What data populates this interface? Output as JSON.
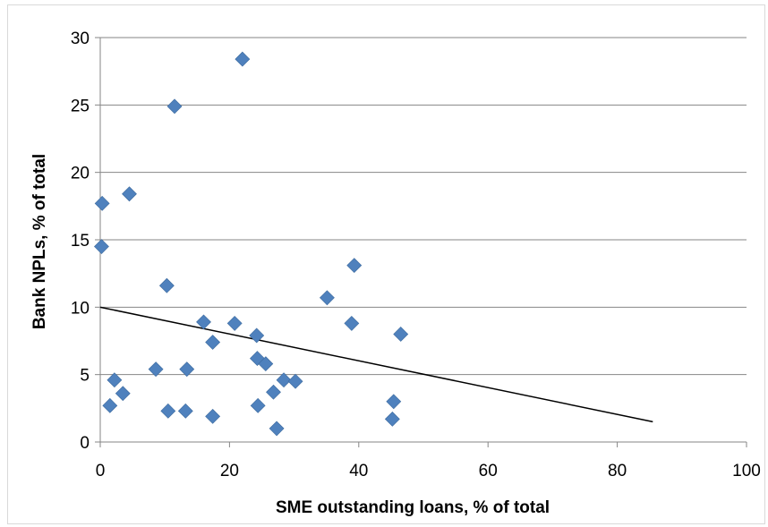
{
  "chart_data": {
    "type": "scatter",
    "title": "",
    "xlabel": "SME outstanding loans, % of total",
    "ylabel": "Bank NPLs, % of total",
    "xlim": [
      0,
      100
    ],
    "ylim": [
      0,
      30
    ],
    "x_ticks": [
      "0",
      "20",
      "40",
      "60",
      "80",
      "100"
    ],
    "y_ticks": [
      "0",
      "5",
      "10",
      "15",
      "20",
      "25",
      "30"
    ],
    "grid": "horizontal",
    "legend": "none",
    "marker_color": "#4f81bd",
    "points": [
      {
        "x": 0.3,
        "y": 17.7
      },
      {
        "x": 0.2,
        "y": 14.5
      },
      {
        "x": 1.5,
        "y": 2.7
      },
      {
        "x": 2.2,
        "y": 4.6
      },
      {
        "x": 3.5,
        "y": 3.6
      },
      {
        "x": 4.5,
        "y": 18.4
      },
      {
        "x": 8.6,
        "y": 5.4
      },
      {
        "x": 10.3,
        "y": 11.6
      },
      {
        "x": 10.5,
        "y": 2.3
      },
      {
        "x": 11.5,
        "y": 24.9
      },
      {
        "x": 13.2,
        "y": 2.3
      },
      {
        "x": 13.4,
        "y": 5.4
      },
      {
        "x": 16.0,
        "y": 8.9
      },
      {
        "x": 17.4,
        "y": 7.4
      },
      {
        "x": 17.4,
        "y": 1.9
      },
      {
        "x": 20.8,
        "y": 8.8
      },
      {
        "x": 22.0,
        "y": 28.4
      },
      {
        "x": 24.2,
        "y": 7.9
      },
      {
        "x": 24.3,
        "y": 6.2
      },
      {
        "x": 24.4,
        "y": 2.7
      },
      {
        "x": 25.6,
        "y": 5.8
      },
      {
        "x": 26.8,
        "y": 3.7
      },
      {
        "x": 27.3,
        "y": 1.0
      },
      {
        "x": 28.4,
        "y": 4.6
      },
      {
        "x": 30.2,
        "y": 4.5
      },
      {
        "x": 35.1,
        "y": 10.7
      },
      {
        "x": 38.9,
        "y": 8.8
      },
      {
        "x": 39.3,
        "y": 13.1
      },
      {
        "x": 45.2,
        "y": 1.7
      },
      {
        "x": 45.4,
        "y": 3.0
      },
      {
        "x": 46.5,
        "y": 8.0
      }
    ],
    "trendline": {
      "x": [
        0,
        85.5
      ],
      "y": [
        10.0,
        1.5
      ],
      "color": "#000000"
    }
  }
}
